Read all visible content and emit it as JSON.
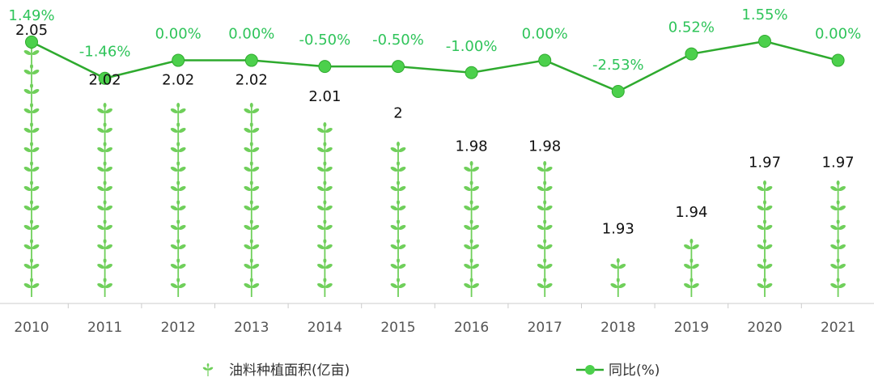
{
  "chart_data": {
    "type": "bar",
    "categories": [
      "2010",
      "2011",
      "2012",
      "2013",
      "2014",
      "2015",
      "2016",
      "2017",
      "2018",
      "2019",
      "2020",
      "2021"
    ],
    "series": [
      {
        "name": "油料种植面积(亿亩)",
        "type": "pictorial-bar",
        "values": [
          2.05,
          2.02,
          2.02,
          2.02,
          2.01,
          2,
          1.98,
          1.98,
          1.93,
          1.94,
          1.97,
          1.97
        ],
        "value_labels": [
          "2.05",
          "2.02",
          "2.02",
          "2.02",
          "2.01",
          "2",
          "1.98",
          "1.98",
          "1.93",
          "1.94",
          "1.97",
          "1.97"
        ]
      },
      {
        "name": "同比(%)",
        "type": "line",
        "values": [
          1.49,
          -1.46,
          0.0,
          0.0,
          -0.5,
          -0.5,
          -1.0,
          0.0,
          -2.53,
          0.52,
          1.55,
          0.0
        ],
        "value_labels": [
          "1.49%",
          "-1.46%",
          "0.00%",
          "0.00%",
          "-0.50%",
          "-0.50%",
          "-1.00%",
          "0.00%",
          "-2.53%",
          "0.52%",
          "1.55%",
          "0.00%"
        ]
      }
    ],
    "bar_axis_range": [
      1.9,
      2.05
    ],
    "line_axis_range": [
      -3.5,
      2.0
    ],
    "grid": false,
    "legend_position": "bottom",
    "colors": {
      "icon": "#6fcf5a",
      "stem": "#c9e8b8",
      "line": "#2eaa2e",
      "marker": "#4cd04c",
      "pct_text": "#2fc45a",
      "axis": "#cccccc"
    }
  }
}
